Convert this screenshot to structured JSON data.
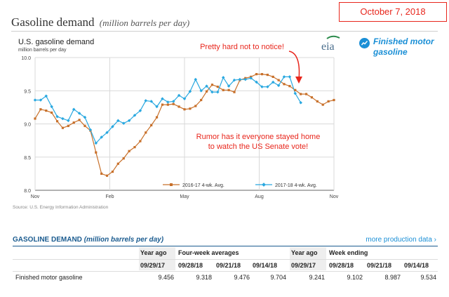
{
  "page": {
    "title": "Gasoline demand",
    "subtitle": "(million barrels per day)",
    "date_badge": "October 7, 2018"
  },
  "side_panel": {
    "icon": "line-chart-icon",
    "label": "Finished motor gasoline"
  },
  "chart_data": {
    "type": "line",
    "title": "U.S. gasoline demand",
    "subtitle": "million barrels per day",
    "logo": "eia",
    "source": "Source: U.S. Energy Information Administration",
    "ylim": [
      8.0,
      10.0
    ],
    "yticks": [
      "10.0",
      "9.5",
      "9.0",
      "8.5",
      "8.0"
    ],
    "xticks": [
      "Nov",
      "Feb",
      "May",
      "Aug",
      "Nov"
    ],
    "grid": true,
    "legend_position": "bottom-right",
    "annotations": [
      "Pretty hard not to notice!",
      "Rumor has it everyone stayed home",
      "to watch the US Senate vote!"
    ],
    "annotation_color": "#e8261c",
    "series": [
      {
        "name": "2016-17",
        "legend_label": "2016-17  4-wk. Avg.",
        "color": "#c8702a",
        "marker": "square",
        "values": [
          9.08,
          9.22,
          9.2,
          9.17,
          9.04,
          8.94,
          8.97,
          9.02,
          9.06,
          8.97,
          8.9,
          8.57,
          8.25,
          8.22,
          8.28,
          8.4,
          8.48,
          8.59,
          8.65,
          8.74,
          8.87,
          8.98,
          9.1,
          9.29,
          9.29,
          9.3,
          9.26,
          9.22,
          9.23,
          9.27,
          9.36,
          9.49,
          9.59,
          9.56,
          9.51,
          9.51,
          9.48,
          9.66,
          9.69,
          9.71,
          9.75,
          9.75,
          9.74,
          9.71,
          9.66,
          9.6,
          9.57,
          9.51,
          9.45,
          9.45,
          9.4,
          9.34,
          9.29,
          9.34,
          9.36
        ]
      },
      {
        "name": "2017-18",
        "legend_label": "2017-18  4-wk. Avg.",
        "color": "#29a8e0",
        "marker": "diamond",
        "values": [
          9.36,
          9.36,
          9.42,
          9.26,
          9.11,
          9.08,
          9.05,
          9.22,
          9.16,
          9.1,
          8.91,
          8.71,
          8.8,
          8.87,
          8.96,
          9.05,
          9.01,
          9.05,
          9.13,
          9.2,
          9.35,
          9.34,
          9.26,
          9.38,
          9.33,
          9.34,
          9.43,
          9.38,
          9.49,
          9.67,
          9.5,
          9.57,
          9.48,
          9.48,
          9.7,
          9.57,
          9.66,
          9.67,
          9.67,
          9.69,
          9.63,
          9.56,
          9.56,
          9.63,
          9.58,
          9.71,
          9.71,
          9.46,
          9.32
        ]
      }
    ]
  },
  "table": {
    "title_prefix": "GASOLINE DEMAND",
    "title_suffix": "(million barrels per day)",
    "more_link": "more production data ›",
    "group_headers": [
      "Year ago",
      "Four-week averages",
      "Year ago",
      "Week ending"
    ],
    "dates": [
      "09/29/17",
      "09/28/18",
      "09/21/18",
      "09/14/18",
      "09/29/17",
      "09/28/18",
      "09/21/18",
      "09/14/18"
    ],
    "rows": [
      {
        "label": "Finished motor gasoline",
        "values": [
          "9.456",
          "9.318",
          "9.476",
          "9.704",
          "9.241",
          "9.102",
          "8.987",
          "9.534"
        ]
      }
    ]
  }
}
